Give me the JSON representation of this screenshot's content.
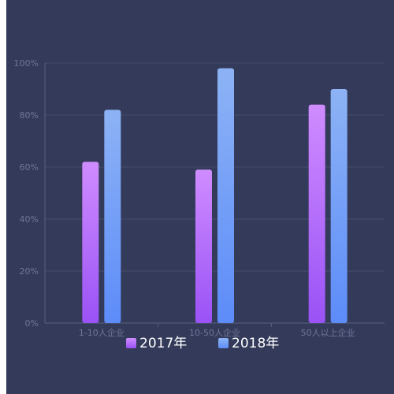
{
  "chart_data": {
    "type": "bar",
    "categories": [
      "1-10人企业",
      "10-50人企业",
      "50人以上企业"
    ],
    "series": [
      {
        "name": "2017年",
        "values": [
          62,
          59,
          84
        ]
      },
      {
        "name": "2018年",
        "values": [
          82,
          98,
          90
        ]
      }
    ],
    "ylim": [
      0,
      100
    ],
    "yticks": [
      "0%",
      "20%",
      "40%",
      "60%",
      "80%",
      "100%"
    ],
    "grid": true,
    "legend_position": "bottom-center",
    "colors": {
      "series_2017_top": "#cf8cff",
      "series_2017_bottom": "#9a52f6",
      "series_2018_top": "#8db3f5",
      "series_2018_bottom": "#5d8cf9",
      "background": "#333a5a",
      "gridline": "#454c6c",
      "axis_text": "#6f7698"
    }
  }
}
